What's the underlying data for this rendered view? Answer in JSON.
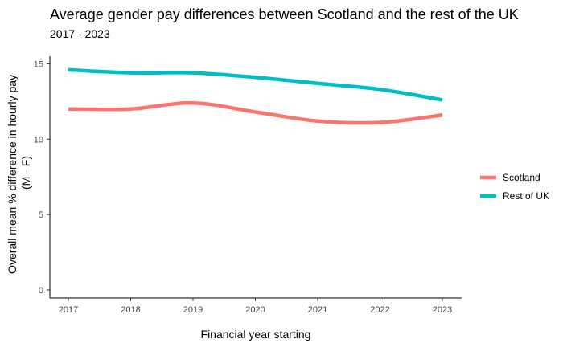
{
  "chart_data": {
    "type": "line",
    "title": "Average gender pay differences between Scotland and the rest of the UK",
    "subtitle": "2017 - 2023",
    "xlabel": "Financial year starting",
    "ylabel_lines": [
      "Overall mean % difference in hourly pay",
      "(M - F)"
    ],
    "x": [
      "2017",
      "2018",
      "2019",
      "2020",
      "2021",
      "2022",
      "2023"
    ],
    "ylim": [
      0,
      15.5
    ],
    "yticks": [
      0,
      5,
      10,
      15
    ],
    "grid": false,
    "legend_position": "right",
    "series": [
      {
        "name": "Scotland",
        "color": "#F8766D",
        "values": [
          12.0,
          12.0,
          12.4,
          11.8,
          11.2,
          11.1,
          11.6
        ]
      },
      {
        "name": "Rest of UK",
        "color": "#00BFC4",
        "values": [
          14.6,
          14.4,
          14.4,
          14.1,
          13.7,
          13.3,
          12.6
        ]
      }
    ]
  }
}
